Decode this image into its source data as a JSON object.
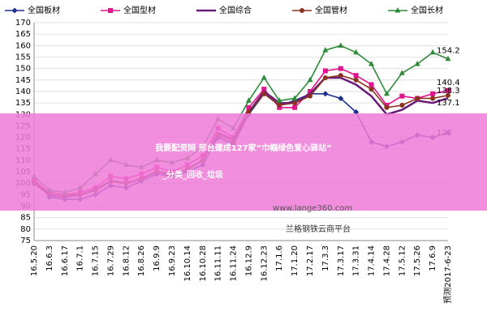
{
  "chart_data": {
    "type": "line",
    "categories": [
      "16.5.20",
      "16.6.3",
      "16.6.17",
      "16.7.1",
      "16.7.15",
      "16.7.29",
      "16.8.12",
      "16.8.26",
      "16.9.9",
      "16.9.23",
      "16.10.14",
      "16.10.28",
      "16.11.11",
      "16.11.24",
      "16.12.9",
      "16.12.23",
      "17.1.6",
      "17.1.20",
      "17.2.17",
      "17.3.3",
      "17.3.17",
      "17.3.31",
      "17.4.14",
      "17.4.28",
      "17.5.12",
      "17.5.26",
      "17.6.9",
      "预测2017-6-23"
    ],
    "series": [
      {
        "name": "全国板材",
        "color": "#1f2f8f",
        "marker": "diamond",
        "values": [
          102,
          94,
          93,
          93,
          95,
          99,
          98,
          101,
          104,
          103,
          105,
          108,
          120,
          117,
          130,
          139,
          134,
          136,
          139,
          139,
          137,
          131,
          118,
          116,
          118,
          121,
          120,
          122
        ]
      },
      {
        "name": "全国型材",
        "color": "#e0148c",
        "marker": "square",
        "values": [
          101,
          96,
          95,
          96,
          98,
          103,
          102,
          104,
          107,
          105,
          108,
          112,
          124,
          120,
          133,
          141,
          133,
          133,
          140,
          149,
          150,
          147,
          143,
          134,
          138,
          137,
          139,
          140.4
        ]
      },
      {
        "name": "全国综合",
        "color": "#6a1a78",
        "marker": "none",
        "values": [
          100,
          95,
          94,
          95,
          97,
          101,
          100,
          102,
          105,
          104,
          106,
          110,
          122,
          119,
          131,
          140,
          135,
          135,
          139,
          146,
          146,
          143,
          138,
          130,
          132,
          136,
          135,
          137.1
        ]
      },
      {
        "name": "全国管材",
        "color": "#8b3320",
        "marker": "circle",
        "values": [
          100,
          96,
          95,
          95,
          97,
          101,
          100,
          102,
          105,
          104,
          106,
          110,
          121,
          118,
          131,
          139,
          134,
          135,
          138,
          146,
          147,
          145,
          141,
          133,
          134,
          137,
          137,
          138.3
        ]
      },
      {
        "name": "全国长材",
        "color": "#2e8b3a",
        "marker": "triangle",
        "values": [
          103,
          97,
          96,
          98,
          104,
          110,
          108,
          107,
          110,
          109,
          111,
          116,
          128,
          124,
          136,
          146,
          136,
          137,
          145,
          158,
          160,
          157,
          152,
          139,
          148,
          152,
          157,
          154.2
        ]
      }
    ],
    "ylim": [
      75,
      170
    ],
    "yticks": [
      75,
      80,
      85,
      90,
      95,
      100,
      105,
      110,
      115,
      120,
      125,
      130,
      135,
      140,
      145,
      150,
      155,
      160,
      165,
      170
    ],
    "grid": true
  },
  "banner": [
    "我要配资网 邢台建成127家“巾帼绿色爱心驿站”",
    "_分类_回收_垃圾"
  ],
  "watermarks": [
    "www.lange360.com",
    "兰格钢铁云商平台"
  ]
}
